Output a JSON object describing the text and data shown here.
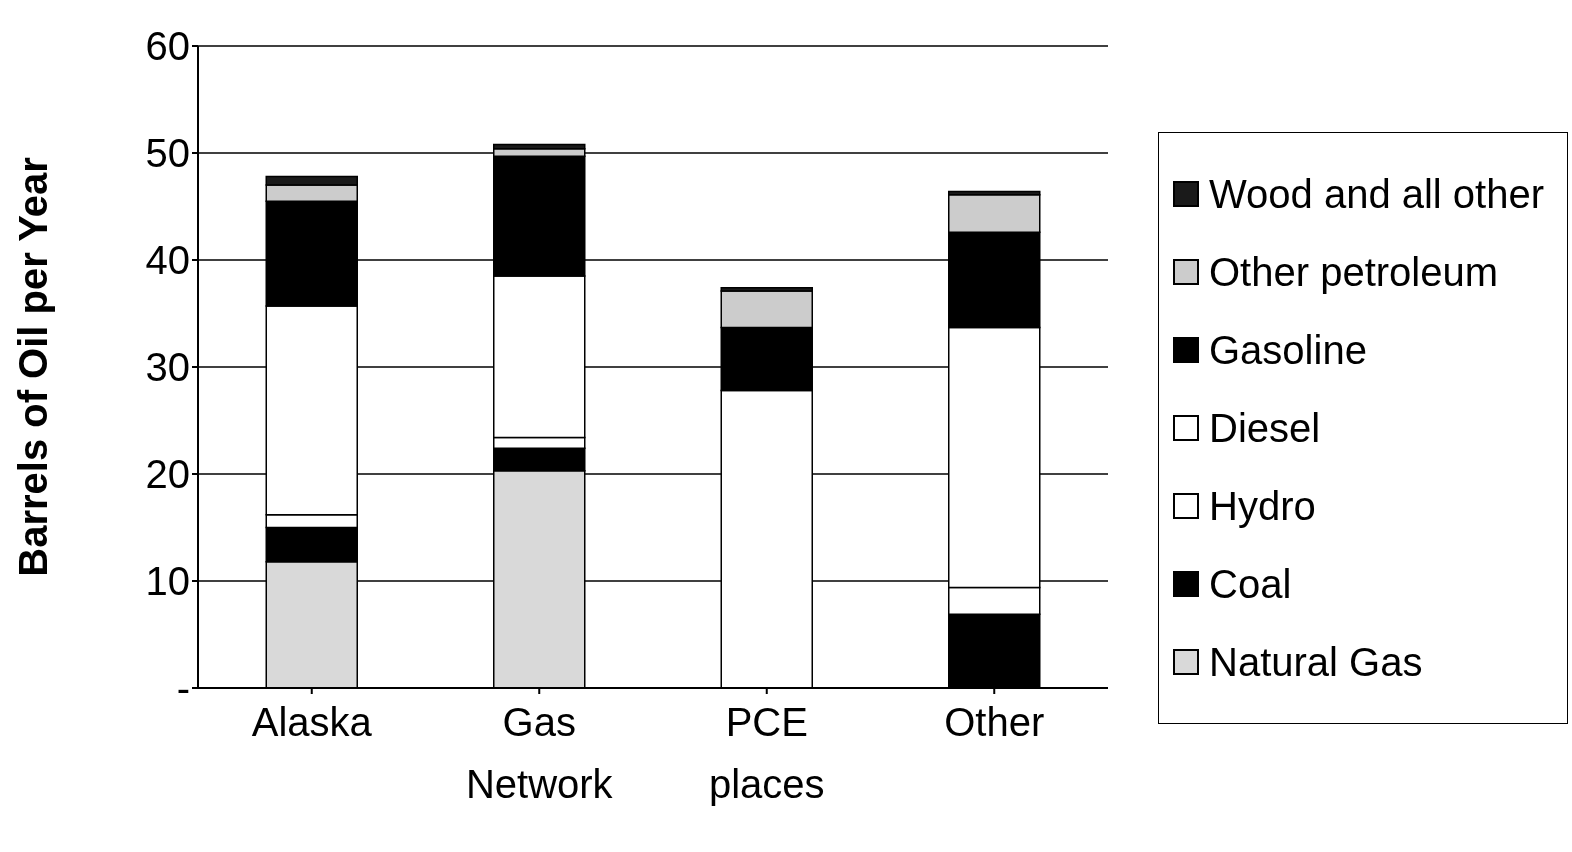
{
  "chart_data": {
    "type": "bar",
    "stacked": true,
    "ylabel": "Barrels of Oil per Year",
    "categories": [
      "Alaska",
      "Gas Network",
      "PCE places",
      "Other"
    ],
    "series": [
      {
        "name": "Natural Gas",
        "color": "#d9d9d9",
        "values": [
          11.8,
          20.3,
          null,
          null
        ]
      },
      {
        "name": "Coal",
        "color": "#000000",
        "values": [
          3.2,
          2.1,
          null,
          6.9
        ]
      },
      {
        "name": "Hydro",
        "color": "#ffffff",
        "values": [
          1.2,
          1.0,
          null,
          2.5
        ]
      },
      {
        "name": "Diesel",
        "color": "#ffffff",
        "values": [
          19.5,
          15.1,
          27.8,
          24.3
        ]
      },
      {
        "name": "Gasoline",
        "color": "#000000",
        "values": [
          9.8,
          11.2,
          5.9,
          8.9
        ]
      },
      {
        "name": "Other petroleum",
        "color": "#cccccc",
        "values": [
          1.5,
          0.7,
          3.4,
          3.5
        ]
      },
      {
        "name": "Wood and all other",
        "color": "#1a1a1a",
        "values": [
          0.8,
          0.4,
          0.3,
          0.3
        ]
      }
    ],
    "ylim": [
      0,
      60
    ],
    "yticks": [
      {
        "value": 0,
        "label": "-"
      },
      10,
      20,
      30,
      40,
      50,
      60
    ],
    "grid": "y",
    "legend": "right"
  }
}
